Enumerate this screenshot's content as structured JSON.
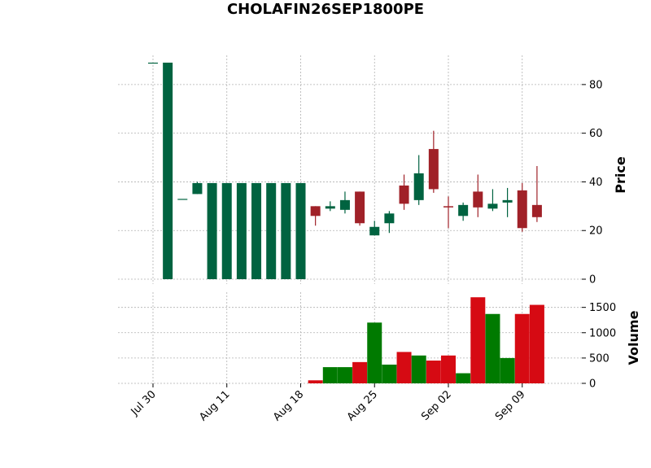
{
  "chart_data": {
    "type": "candlestick",
    "title": "CHOLAFIN26SEP1800PE",
    "price_ylabel": "Price",
    "volume_ylabel": "Volume",
    "price_ylim": [
      -2,
      92
    ],
    "volume_ylim": [
      0,
      1800
    ],
    "price_yticks": [
      0,
      20,
      40,
      60,
      80
    ],
    "volume_yticks": [
      0,
      500,
      1000,
      1500
    ],
    "grid": true,
    "colors": {
      "up": "#006340",
      "down": "#a02128",
      "vol_up": "#007a00",
      "vol_down": "#d60a13"
    },
    "xtick_labels": [
      {
        "label": "Jul 30",
        "index": 0
      },
      {
        "label": "Aug 11",
        "index": 5
      },
      {
        "label": "Aug 18",
        "index": 10
      },
      {
        "label": "Aug 25",
        "index": 15
      },
      {
        "label": "Sep 02",
        "index": 20
      },
      {
        "label": "Sep 09",
        "index": 25
      }
    ],
    "candles": [
      {
        "o": 89,
        "h": 89,
        "l": 89,
        "c": 89,
        "v": 0
      },
      {
        "o": 0,
        "h": 89,
        "l": 0,
        "c": 89,
        "v": 0
      },
      {
        "o": 33,
        "h": 33,
        "l": 33,
        "c": 33,
        "v": 0
      },
      {
        "o": 35,
        "h": 40,
        "l": 35,
        "c": 39.5,
        "v": 0
      },
      {
        "o": 0,
        "h": 39.5,
        "l": 0,
        "c": 39.5,
        "v": 0
      },
      {
        "o": 0,
        "h": 39.5,
        "l": 0,
        "c": 39.5,
        "v": 0
      },
      {
        "o": 0,
        "h": 39.5,
        "l": 0,
        "c": 39.5,
        "v": 0
      },
      {
        "o": 0,
        "h": 39.5,
        "l": 0,
        "c": 39.5,
        "v": 0
      },
      {
        "o": 0,
        "h": 39.5,
        "l": 0,
        "c": 39.5,
        "v": 0
      },
      {
        "o": 0,
        "h": 39.5,
        "l": 0,
        "c": 39.5,
        "v": 0
      },
      {
        "o": 0,
        "h": 39.5,
        "l": 0,
        "c": 39.5,
        "v": 0
      },
      {
        "o": 30,
        "h": 30,
        "l": 22,
        "c": 26,
        "v": 60
      },
      {
        "o": 29,
        "h": 32,
        "l": 28,
        "c": 30,
        "v": 320
      },
      {
        "o": 28.5,
        "h": 36,
        "l": 27,
        "c": 32.5,
        "v": 320
      },
      {
        "o": 36,
        "h": 36,
        "l": 22,
        "c": 23,
        "v": 420
      },
      {
        "o": 18,
        "h": 24,
        "l": 18,
        "c": 21.5,
        "v": 1200
      },
      {
        "o": 23,
        "h": 28,
        "l": 19,
        "c": 27,
        "v": 370
      },
      {
        "o": 38.5,
        "h": 43,
        "l": 28.5,
        "c": 31,
        "v": 620
      },
      {
        "o": 32.5,
        "h": 51,
        "l": 30.5,
        "c": 43.5,
        "v": 550
      },
      {
        "o": 53.5,
        "h": 61,
        "l": 35.5,
        "c": 37,
        "v": 450
      },
      {
        "o": 30,
        "h": 34,
        "l": 21,
        "c": 29.5,
        "v": 550
      },
      {
        "o": 26,
        "h": 31.5,
        "l": 24,
        "c": 30.5,
        "v": 200
      },
      {
        "o": 36,
        "h": 43,
        "l": 25.5,
        "c": 29.5,
        "v": 1700
      },
      {
        "o": 29,
        "h": 37,
        "l": 28,
        "c": 31,
        "v": 1370
      },
      {
        "o": 31.5,
        "h": 37.5,
        "l": 25.5,
        "c": 32.5,
        "v": 500
      },
      {
        "o": 36.5,
        "h": 39.5,
        "l": 19.5,
        "c": 21,
        "v": 1370
      },
      {
        "o": 30.5,
        "h": 46.5,
        "l": 23.5,
        "c": 25.5,
        "v": 1550
      }
    ]
  }
}
